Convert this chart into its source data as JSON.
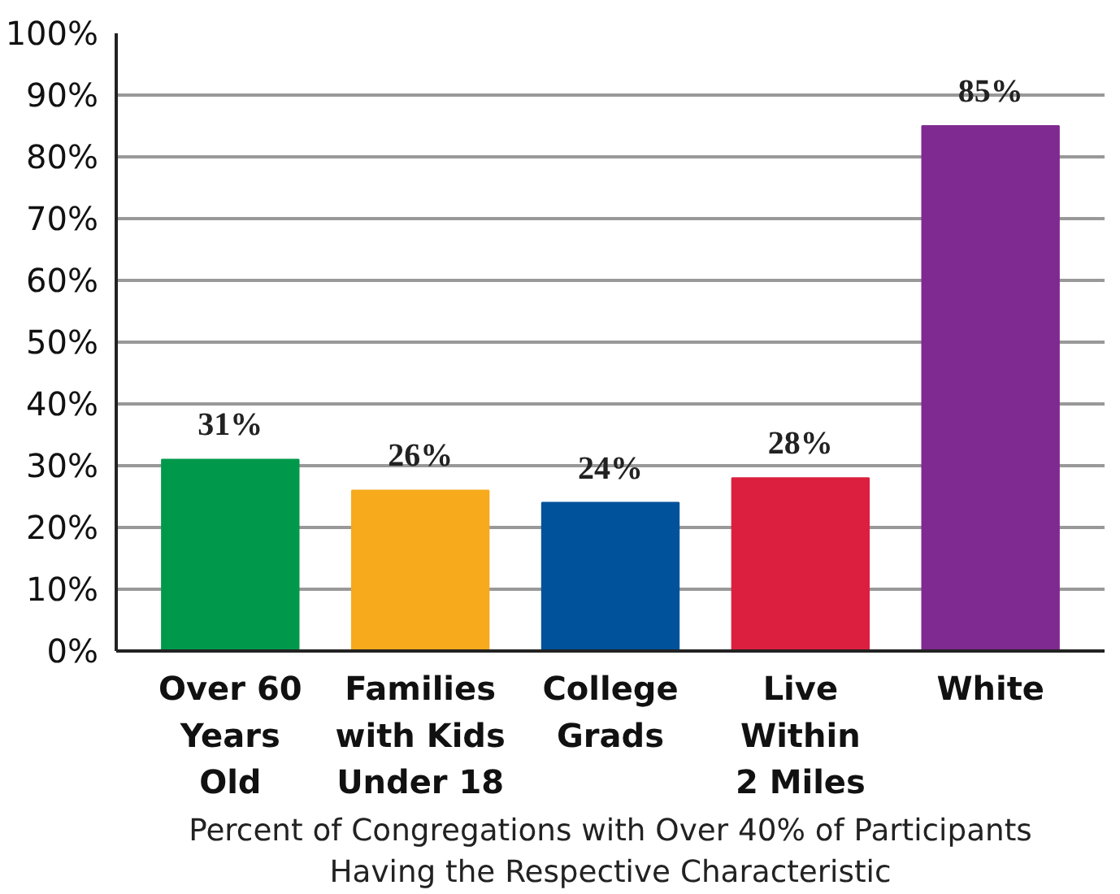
{
  "chart_data": {
    "type": "bar",
    "categories": [
      "Over 60\nYears\nOld",
      "Families\nwith Kids\nUnder 18",
      "College\nGrads",
      "Live\nWithin\n2 Miles",
      "White"
    ],
    "values": [
      31,
      26,
      24,
      28,
      85
    ],
    "colors": [
      "#00994c",
      "#f6aa1c",
      "#00529b",
      "#dc1f3e",
      "#7f2a91"
    ],
    "ylim": [
      0,
      100
    ],
    "yticks": [
      {
        "value": 0,
        "label": "0%"
      },
      {
        "value": 10,
        "label": "10%"
      },
      {
        "value": 20,
        "label": "20%"
      },
      {
        "value": 30,
        "label": "30%"
      },
      {
        "value": 40,
        "label": "40%"
      },
      {
        "value": 50,
        "label": "50%"
      },
      {
        "value": 60,
        "label": "60%"
      },
      {
        "value": 70,
        "label": "70%"
      },
      {
        "value": 80,
        "label": "80%"
      },
      {
        "value": 90,
        "label": "90%"
      },
      {
        "value": 100,
        "label": "100%"
      }
    ],
    "value_labels": [
      "31%",
      "26%",
      "24%",
      "28%",
      "85%"
    ],
    "xlabel": "Percent of Congregations with Over 40% of Participants\nHaving the Respective Characteristic",
    "grid": "y"
  }
}
